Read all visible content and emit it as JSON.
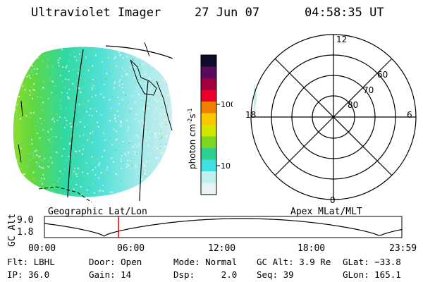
{
  "header": {
    "title": "Ultraviolet Imager",
    "date": "27 Jun 07",
    "time": "04:58:35 UT"
  },
  "colorbar": {
    "unit_label": "photon cm",
    "unit_exp1": "-2",
    "unit_s": "s",
    "unit_exp2": "-1",
    "ticks": [
      "100",
      "10"
    ],
    "colors": [
      "#0c0c2a",
      "#5a0a5a",
      "#a0003c",
      "#e8002a",
      "#f08000",
      "#f8c800",
      "#d0e800",
      "#7cd820",
      "#30d090",
      "#40e0e0",
      "#c0f0f0",
      "#e8f4f4"
    ]
  },
  "polar": {
    "mlt_labels": {
      "top": "12",
      "left": "18",
      "right": "6",
      "bottom": "0"
    },
    "lat_labels": [
      "60",
      "70",
      "80"
    ]
  },
  "timeline": {
    "ylabel": "GC Alt",
    "yticks": [
      "9.0",
      "1.8"
    ],
    "left_label": "Geographic Lat/Lon",
    "right_label": "Apex MLat/MLT",
    "xticks": [
      "00:00",
      "06:00",
      "12:00",
      "18:00",
      "23:59"
    ],
    "current_hour": 4.976
  },
  "info": {
    "row1": [
      "Flt: LBHL",
      "Door: Open",
      "Mode: Normal",
      "GC Alt: 3.9 Re",
      "GLat: −33.8"
    ],
    "row2": [
      "IP: 36.0",
      "Gain: 14",
      "Dsp:     2.0",
      "Seq: 39",
      "GLon: 165.1"
    ]
  },
  "colors": {
    "marker": "#e00000",
    "lines": "#000000"
  }
}
